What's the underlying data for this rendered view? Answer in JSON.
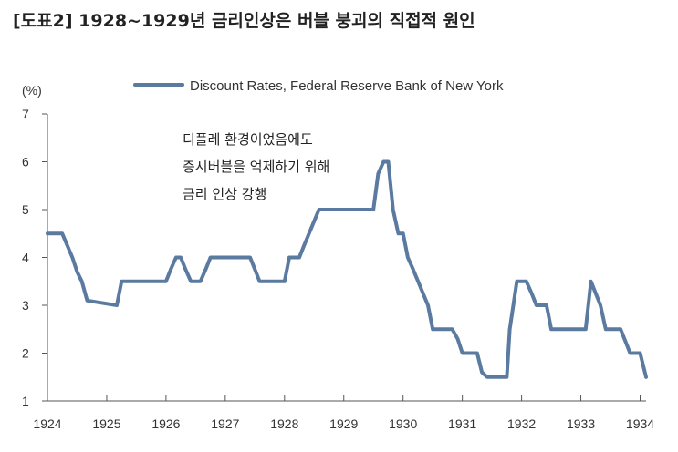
{
  "title": "[도표2] 1928~1929년 금리인상은 버블 붕괴의 직접적 원인",
  "colors": {
    "series": "#5b7aa0",
    "axis": "#555555",
    "text": "#333333"
  },
  "chart_data": {
    "type": "line",
    "unit_label": "(%)",
    "ylim": [
      1,
      7
    ],
    "yticks": [
      1,
      2,
      3,
      4,
      5,
      6,
      7
    ],
    "xlim": [
      1924,
      1934.1
    ],
    "xticks": [
      1924,
      1925,
      1926,
      1927,
      1928,
      1929,
      1930,
      1931,
      1932,
      1933,
      1934
    ],
    "grid": false,
    "legend_position": "top",
    "annotation": [
      "디플레 환경이었음에도",
      "증시버블을 억제하기 위해",
      "금리 인상 강행"
    ],
    "series": [
      {
        "name": "Discount Rates, Federal Reserve Bank of New York",
        "x": [
          1924.0,
          1924.25,
          1924.42,
          1924.5,
          1924.58,
          1924.67,
          1925.17,
          1925.25,
          1926.0,
          1926.08,
          1926.17,
          1926.25,
          1926.33,
          1926.42,
          1926.58,
          1926.67,
          1926.75,
          1927.42,
          1927.5,
          1927.58,
          1928.0,
          1928.08,
          1928.25,
          1928.33,
          1928.58,
          1928.67,
          1929.42,
          1929.5,
          1929.58,
          1929.67,
          1929.75,
          1929.83,
          1929.92,
          1930.0,
          1930.08,
          1930.17,
          1930.42,
          1930.5,
          1930.83,
          1930.92,
          1931.0,
          1931.25,
          1931.33,
          1931.42,
          1931.75,
          1931.8,
          1931.92,
          1932.08,
          1932.17,
          1932.25,
          1932.42,
          1932.5,
          1933.08,
          1933.17,
          1933.25,
          1933.33,
          1933.42,
          1933.67,
          1933.75,
          1933.83,
          1934.0,
          1934.1
        ],
        "values": [
          4.5,
          4.5,
          4.0,
          3.7,
          3.5,
          3.1,
          3.0,
          3.5,
          3.5,
          3.75,
          4.0,
          4.0,
          3.75,
          3.5,
          3.5,
          3.75,
          4.0,
          4.0,
          3.75,
          3.5,
          3.5,
          4.0,
          4.0,
          4.25,
          5.0,
          5.0,
          5.0,
          5.0,
          5.75,
          6.0,
          6.0,
          5.0,
          4.5,
          4.5,
          4.0,
          3.75,
          3.0,
          2.5,
          2.5,
          2.3,
          2.0,
          2.0,
          1.6,
          1.5,
          1.5,
          2.5,
          3.5,
          3.5,
          3.25,
          3.0,
          3.0,
          2.5,
          2.5,
          3.5,
          3.25,
          3.0,
          2.5,
          2.5,
          2.25,
          2.0,
          2.0,
          1.5
        ]
      }
    ]
  }
}
